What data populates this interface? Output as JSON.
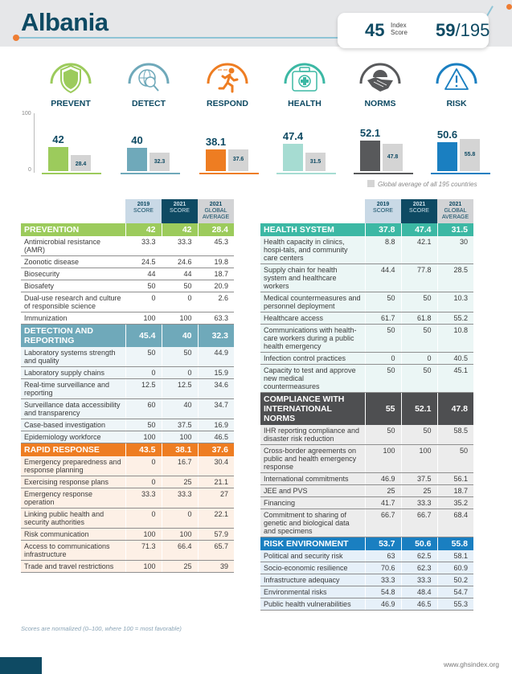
{
  "header": {
    "country": "Albania",
    "index_score": "45",
    "index_score_label_1": "Index",
    "index_score_label_2": "Score",
    "rank": "59",
    "rank_total": "/195"
  },
  "categories": [
    {
      "key": "prevent",
      "label": "PREVENT",
      "icon": "shield-icon",
      "color": "#9ccb5c"
    },
    {
      "key": "detect",
      "label": "DETECT",
      "icon": "globe-magnifier-icon",
      "color": "#6fa9ba"
    },
    {
      "key": "respond",
      "label": "RESPOND",
      "icon": "running-person-icon",
      "color": "#ee7d22"
    },
    {
      "key": "health",
      "label": "HEALTH",
      "icon": "medical-kit-icon",
      "color": "#3cb8a4"
    },
    {
      "key": "norms",
      "label": "NORMS",
      "icon": "handshake-globe-icon",
      "color": "#58595b"
    },
    {
      "key": "risk",
      "label": "RISK",
      "icon": "warning-triangle-icon",
      "color": "#1a7fc1"
    }
  ],
  "chart_data": {
    "type": "bar",
    "title": "",
    "categories": [
      "PREVENT",
      "DETECT",
      "RESPOND",
      "HEALTH",
      "NORMS",
      "RISK"
    ],
    "series": [
      {
        "name": "Albania 2021 score",
        "values": [
          42,
          40,
          38.1,
          47.4,
          52.1,
          50.6
        ],
        "labels": [
          "42",
          "40",
          "38.1",
          "47.4",
          "52.1",
          "50.6"
        ]
      },
      {
        "name": "Global average of all 195 countries",
        "values": [
          28.4,
          32.3,
          37.6,
          31.5,
          47.8,
          55.8
        ],
        "labels": [
          "28.4",
          "32.3",
          "37.6",
          "31.5",
          "47.8",
          "55.8"
        ],
        "color": "#d4d4d4"
      }
    ],
    "bar_colors": [
      "#9ccb5c",
      "#6fa9ba",
      "#ee7d22",
      "#a6dcd2",
      "#58595b",
      "#1a7fc1"
    ],
    "ylim": [
      0,
      100
    ],
    "yticks": [
      "0",
      "100"
    ],
    "legend": "Global average of all 195 countries",
    "legend_position": "bottom-right"
  },
  "column_headers": {
    "c2019_year": "2019",
    "c2019_sub": "SCORE",
    "c2021_year": "2021",
    "c2021_sub": "SCORE",
    "cga_year": "2021",
    "cga_sub1": "GLOBAL",
    "cga_sub2": "AVERAGE"
  },
  "left_tables": [
    {
      "name": "PREVENTION",
      "color": "#9ccb5c",
      "row_bg": "#ffffff",
      "score2019": "42",
      "score2021": "42",
      "global": "28.4",
      "rows": [
        {
          "label": "Antimicrobial resistance (AMR)",
          "s2019": "33.3",
          "s2021": "33.3",
          "g": "45.3"
        },
        {
          "label": "Zoonotic disease",
          "s2019": "24.5",
          "s2021": "24.6",
          "g": "19.8"
        },
        {
          "label": "Biosecurity",
          "s2019": "44",
          "s2021": "44",
          "g": "18.7"
        },
        {
          "label": "Biosafety",
          "s2019": "50",
          "s2021": "50",
          "g": "20.9"
        },
        {
          "label": "Dual-use research and culture of responsible science",
          "s2019": "0",
          "s2021": "0",
          "g": "2.6"
        },
        {
          "label": "Immunization",
          "s2019": "100",
          "s2021": "100",
          "g": "63.3"
        }
      ]
    },
    {
      "name": "DETECTION AND REPORTING",
      "color": "#6fa9ba",
      "row_bg": "#eef5f8",
      "score2019": "45.4",
      "score2021": "40",
      "global": "32.3",
      "rows": [
        {
          "label": "Laboratory systems strength and quality",
          "s2019": "50",
          "s2021": "50",
          "g": "44.9"
        },
        {
          "label": "Laboratory supply chains",
          "s2019": "0",
          "s2021": "0",
          "g": "15.9"
        },
        {
          "label": "Real-time surveillance and reporting",
          "s2019": "12.5",
          "s2021": "12.5",
          "g": "34.6"
        },
        {
          "label": "Surveillance data accessibility and transparency",
          "s2019": "60",
          "s2021": "40",
          "g": "34.7"
        },
        {
          "label": "Case-based investigation",
          "s2019": "50",
          "s2021": "37.5",
          "g": "16.9"
        },
        {
          "label": "Epidemiology workforce",
          "s2019": "100",
          "s2021": "100",
          "g": "46.5"
        }
      ]
    },
    {
      "name": "RAPID RESPONSE",
      "color": "#ee7d22",
      "row_bg": "#fdf0e6",
      "score2019": "43.5",
      "score2021": "38.1",
      "global": "37.6",
      "rows": [
        {
          "label": "Emergency preparedness and response planning",
          "s2019": "0",
          "s2021": "16.7",
          "g": "30.4"
        },
        {
          "label": "Exercising response plans",
          "s2019": "0",
          "s2021": "25",
          "g": "21.1"
        },
        {
          "label": "Emergency response operation",
          "s2019": "33.3",
          "s2021": "33.3",
          "g": "27"
        },
        {
          "label": "Linking public health and security authorities",
          "s2019": "0",
          "s2021": "0",
          "g": "22.1"
        },
        {
          "label": "Risk communication",
          "s2019": "100",
          "s2021": "100",
          "g": "57.9"
        },
        {
          "label": "Access to communications infrastructure",
          "s2019": "71.3",
          "s2021": "66.4",
          "g": "65.7"
        },
        {
          "label": "Trade and travel restrictions",
          "s2019": "100",
          "s2021": "25",
          "g": "39"
        }
      ]
    }
  ],
  "right_tables": [
    {
      "name": "HEALTH SYSTEM",
      "color": "#3cb8a4",
      "row_bg": "#ebf6f5",
      "score2019": "37.8",
      "score2021": "47.4",
      "global": "31.5",
      "rows": [
        {
          "label": "Health capacity in clinics, hospi-tals, and community care centers",
          "s2019": "8.8",
          "s2021": "42.1",
          "g": "30"
        },
        {
          "label": "Supply chain for health system and healthcare workers",
          "s2019": "44.4",
          "s2021": "77.8",
          "g": "28.5"
        },
        {
          "label": "Medical countermeasures and personnel deployment",
          "s2019": "50",
          "s2021": "50",
          "g": "10.3"
        },
        {
          "label": "Healthcare access",
          "s2019": "61.7",
          "s2021": "61.8",
          "g": "55.2"
        },
        {
          "label": "Communications with health-care workers during a public health emergency",
          "s2019": "50",
          "s2021": "50",
          "g": "10.8"
        },
        {
          "label": "Infection control practices",
          "s2019": "0",
          "s2021": "0",
          "g": "40.5"
        },
        {
          "label": "Capacity to test and approve new medical countermeasures",
          "s2019": "50",
          "s2021": "50",
          "g": "45.1"
        }
      ]
    },
    {
      "name": "COMPLIANCE WITH INTERNATIONAL NORMS",
      "color": "#4e4f51",
      "row_bg": "#ececec",
      "score2019": "55",
      "score2021": "52.1",
      "global": "47.8",
      "rows": [
        {
          "label": "IHR reporting compliance and disaster risk reduction",
          "s2019": "50",
          "s2021": "50",
          "g": "58.5"
        },
        {
          "label": "Cross-border agreements on public and health emergency response",
          "s2019": "100",
          "s2021": "100",
          "g": "50"
        },
        {
          "label": "International commitments",
          "s2019": "46.9",
          "s2021": "37.5",
          "g": "56.1"
        },
        {
          "label": "JEE and PVS",
          "s2019": "25",
          "s2021": "25",
          "g": "18.7"
        },
        {
          "label": "Financing",
          "s2019": "41.7",
          "s2021": "33.3",
          "g": "35.2"
        },
        {
          "label": "Commitment to sharing of genetic and biological data and specimens",
          "s2019": "66.7",
          "s2021": "66.7",
          "g": "68.4"
        }
      ]
    },
    {
      "name": "RISK ENVIRONMENT",
      "color": "#1a7fc1",
      "row_bg": "#e6f0f9",
      "score2019": "53.7",
      "score2021": "50.6",
      "global": "55.8",
      "rows": [
        {
          "label": "Political and security risk",
          "s2019": "63",
          "s2021": "62.5",
          "g": "58.1"
        },
        {
          "label": "Socio-economic resilience",
          "s2019": "70.6",
          "s2021": "62.3",
          "g": "60.9"
        },
        {
          "label": "Infrastructure adequacy",
          "s2019": "33.3",
          "s2021": "33.3",
          "g": "50.2"
        },
        {
          "label": "Environmental risks",
          "s2019": "54.8",
          "s2021": "48.4",
          "g": "54.7"
        },
        {
          "label": "Public health vulnerabilities",
          "s2019": "46.9",
          "s2021": "46.5",
          "g": "55.3"
        }
      ]
    }
  ],
  "footnote": "Scores are normalized (0–100, where 100 = most favorable)",
  "footer_url": "www.ghsindex.org"
}
